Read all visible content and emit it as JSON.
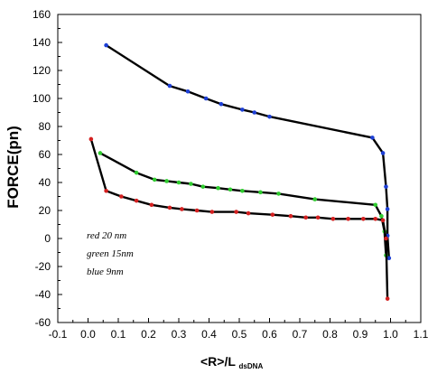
{
  "chart_data": {
    "type": "line",
    "title": "",
    "xlabel": "<R>/L",
    "xlabel_sub": "dsDNA",
    "ylabel": "FORCE(pn)",
    "xlim": [
      -0.1,
      1.1
    ],
    "ylim": [
      -60,
      160
    ],
    "xticks": [
      -0.1,
      0.0,
      0.1,
      0.2,
      0.3,
      0.4,
      0.5,
      0.6,
      0.7,
      0.8,
      0.9,
      1.0,
      1.1
    ],
    "xtick_labels": [
      "-0.1",
      "0.0",
      "0.1",
      "0.2",
      "0.3",
      "0.4",
      "0.5",
      "0.6",
      "0.7",
      "0.8",
      "0.9",
      "1.0",
      "1.1"
    ],
    "yticks": [
      -60,
      -40,
      -20,
      0,
      20,
      40,
      60,
      80,
      100,
      120,
      140,
      160
    ],
    "grid": false,
    "legend": "none",
    "annotations": [
      "red 20 nm",
      "green 15nm",
      "blue 9nm"
    ],
    "series": [
      {
        "color": "#1d3fd6",
        "points": [
          [
            0.06,
            138
          ],
          [
            0.27,
            109
          ],
          [
            0.33,
            105
          ],
          [
            0.39,
            100
          ],
          [
            0.44,
            96
          ],
          [
            0.51,
            92
          ],
          [
            0.55,
            90
          ],
          [
            0.6,
            87
          ],
          [
            0.94,
            72
          ],
          [
            0.975,
            61
          ],
          [
            0.985,
            37
          ],
          [
            0.99,
            21
          ],
          [
            0.99,
            2
          ],
          [
            0.995,
            -14
          ]
        ]
      },
      {
        "color": "#2fcc2f",
        "points": [
          [
            0.04,
            61
          ],
          [
            0.16,
            47
          ],
          [
            0.22,
            42
          ],
          [
            0.26,
            41
          ],
          [
            0.3,
            40
          ],
          [
            0.34,
            39
          ],
          [
            0.38,
            37
          ],
          [
            0.43,
            36
          ],
          [
            0.47,
            35
          ],
          [
            0.51,
            34
          ],
          [
            0.57,
            33
          ],
          [
            0.63,
            32
          ],
          [
            0.75,
            28
          ],
          [
            0.95,
            24
          ],
          [
            0.97,
            16
          ],
          [
            0.98,
            5
          ],
          [
            0.985,
            -12
          ]
        ]
      },
      {
        "color": "#d42020",
        "points": [
          [
            0.01,
            71
          ],
          [
            0.06,
            34
          ],
          [
            0.11,
            30
          ],
          [
            0.16,
            27
          ],
          [
            0.21,
            24
          ],
          [
            0.27,
            22
          ],
          [
            0.31,
            21
          ],
          [
            0.36,
            20
          ],
          [
            0.41,
            19
          ],
          [
            0.49,
            19
          ],
          [
            0.53,
            18
          ],
          [
            0.61,
            17
          ],
          [
            0.67,
            16
          ],
          [
            0.72,
            15
          ],
          [
            0.76,
            15
          ],
          [
            0.81,
            14
          ],
          [
            0.86,
            14
          ],
          [
            0.91,
            14
          ],
          [
            0.95,
            14
          ],
          [
            0.975,
            13
          ],
          [
            0.985,
            0
          ],
          [
            0.99,
            -43
          ]
        ]
      }
    ]
  }
}
